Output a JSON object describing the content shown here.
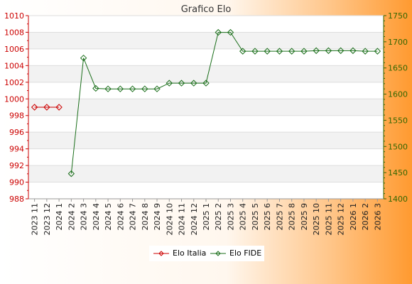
{
  "chart_data": {
    "type": "line",
    "title": "Grafico Elo",
    "categories": [
      "2023 11",
      "2023 12",
      "2024 1",
      "2024 2",
      "2024 3",
      "2024 4",
      "2024 5",
      "2024 6",
      "2024 7",
      "2024 8",
      "2024 9",
      "2024 10",
      "2024 11",
      "2024 12",
      "2025 1",
      "2025 2",
      "2025 3",
      "2025 4",
      "2025 5",
      "2025 6",
      "2025 7",
      "2025 8",
      "2025 9",
      "2025 10",
      "2025 11",
      "2025 12",
      "2026 1",
      "2026 2",
      "2026 3"
    ],
    "y_left": {
      "ticks": [
        988,
        990,
        992,
        994,
        996,
        998,
        1000,
        1002,
        1004,
        1006,
        1008,
        1010
      ],
      "ylim": [
        988,
        1010
      ],
      "color": "#cc0000"
    },
    "y_right": {
      "ticks": [
        1400,
        1450,
        1500,
        1550,
        1600,
        1650,
        1700,
        1750
      ],
      "ylim": [
        1400,
        1750
      ],
      "color": "#336600"
    },
    "series": [
      {
        "name": "Elo Italia",
        "axis": "left",
        "color": "#cc0000",
        "values": [
          999,
          999,
          999,
          null,
          null,
          null,
          null,
          null,
          null,
          null,
          null,
          null,
          null,
          null,
          null,
          null,
          null,
          null,
          null,
          null,
          null,
          null,
          null,
          null,
          null,
          null,
          null,
          null,
          null
        ]
      },
      {
        "name": "Elo FIDE",
        "axis": "right",
        "color": "#1a6e1a",
        "values": [
          null,
          null,
          null,
          1448,
          1669,
          1611,
          1610,
          1610,
          1610,
          1610,
          1610,
          1621,
          1621,
          1621,
          1621,
          1718,
          1718,
          1682,
          1682,
          1682,
          1682,
          1682,
          1682,
          1683,
          1683,
          1683,
          1683,
          1682,
          1682
        ]
      }
    ],
    "grid": true,
    "legend": "bottom"
  }
}
